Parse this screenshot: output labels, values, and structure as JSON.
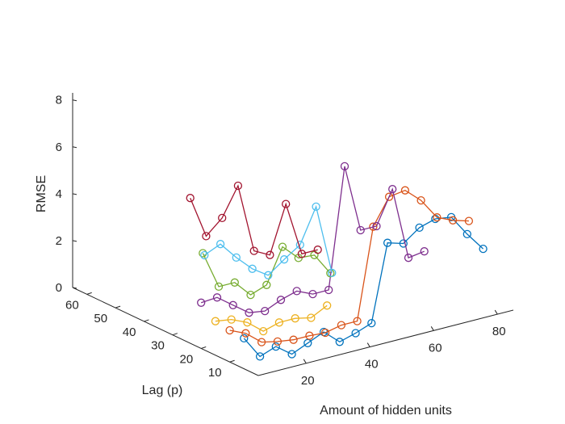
{
  "chart_data": {
    "type": "scatter3d-lines",
    "xlabel": "Amount of hidden units",
    "ylabel": "Lag (p)",
    "zlabel": "RMSE",
    "x_ticks": [
      "20",
      "40",
      "60",
      "80"
    ],
    "y_ticks": [
      "10",
      "20",
      "30",
      "40",
      "50",
      "60"
    ],
    "z_ticks": [
      "0",
      "2",
      "4",
      "6",
      "8"
    ],
    "xlim": [
      5,
      85
    ],
    "ylim": [
      0,
      65
    ],
    "zlim": [
      0,
      8.3
    ],
    "grid": false,
    "legend": "none",
    "series": [
      {
        "color": "#0072BD",
        "lag": 5,
        "points": [
          [
            5,
            1.3
          ],
          [
            10,
            0.35
          ],
          [
            15,
            0.6
          ],
          [
            20,
            0.1
          ],
          [
            25,
            0.4
          ],
          [
            30,
            0.7
          ],
          [
            35,
            0.1
          ],
          [
            40,
            0.3
          ],
          [
            45,
            0.55
          ],
          [
            50,
            3.8
          ],
          [
            55,
            3.6
          ],
          [
            60,
            4.1
          ],
          [
            65,
            4.3
          ],
          [
            70,
            4.2
          ],
          [
            75,
            3.3
          ],
          [
            80,
            2.5
          ]
        ]
      },
      {
        "color": "#D95319",
        "lag": 10,
        "points": [
          [
            5,
            1.35
          ],
          [
            10,
            1.05
          ],
          [
            15,
            0.5
          ],
          [
            20,
            0.35
          ],
          [
            25,
            0.25
          ],
          [
            30,
            0.25
          ],
          [
            35,
            0.2
          ],
          [
            40,
            0.35
          ],
          [
            45,
            0.35
          ],
          [
            50,
            4.2
          ],
          [
            55,
            5.3
          ],
          [
            60,
            5.4
          ],
          [
            65,
            4.8
          ],
          [
            70,
            3.9
          ],
          [
            75,
            3.6
          ],
          [
            80,
            3.4
          ]
        ]
      },
      {
        "color": "#EDB120",
        "lag": 15,
        "points": [
          [
            5,
            1.45
          ],
          [
            10,
            1.35
          ],
          [
            15,
            1.05
          ],
          [
            20,
            0.5
          ],
          [
            25,
            0.7
          ],
          [
            30,
            0.7
          ],
          [
            35,
            0.55
          ],
          [
            40,
            0.9
          ]
        ]
      },
      {
        "color": "#7E2F8E",
        "lag": 20,
        "points": [
          [
            5,
            1.95
          ],
          [
            10,
            2.0
          ],
          [
            15,
            1.5
          ],
          [
            20,
            1.0
          ],
          [
            25,
            0.9
          ],
          [
            30,
            1.2
          ],
          [
            35,
            1.4
          ],
          [
            40,
            1.1
          ],
          [
            45,
            1.1
          ],
          [
            50,
            6.2
          ],
          [
            55,
            3.3
          ],
          [
            60,
            3.3
          ],
          [
            65,
            4.7
          ],
          [
            70,
            1.6
          ],
          [
            75,
            1.7
          ]
        ]
      },
      {
        "color": "#77AC30",
        "lag": 25,
        "points": [
          [
            10,
            3.6
          ],
          [
            15,
            2.0
          ],
          [
            20,
            2.0
          ],
          [
            25,
            1.3
          ],
          [
            30,
            1.55
          ],
          [
            35,
            3.0
          ],
          [
            40,
            2.35
          ],
          [
            45,
            2.3
          ],
          [
            50,
            1.35
          ]
        ]
      },
      {
        "color": "#4DBEEE",
        "lag": 30,
        "points": [
          [
            15,
            3.05
          ],
          [
            20,
            3.35
          ],
          [
            25,
            2.6
          ],
          [
            30,
            1.95
          ],
          [
            35,
            1.5
          ],
          [
            40,
            2.0
          ],
          [
            45,
            2.45
          ],
          [
            50,
            3.9
          ],
          [
            55,
            0.9
          ]
        ]
      },
      {
        "color": "#A2142F",
        "lag": 35,
        "points": [
          [
            15,
            5.2
          ],
          [
            20,
            3.4
          ],
          [
            25,
            4.0
          ],
          [
            30,
            5.2
          ],
          [
            35,
            2.25
          ],
          [
            40,
            1.9
          ],
          [
            45,
            3.9
          ],
          [
            50,
            1.6
          ],
          [
            55,
            1.6
          ]
        ]
      }
    ]
  }
}
